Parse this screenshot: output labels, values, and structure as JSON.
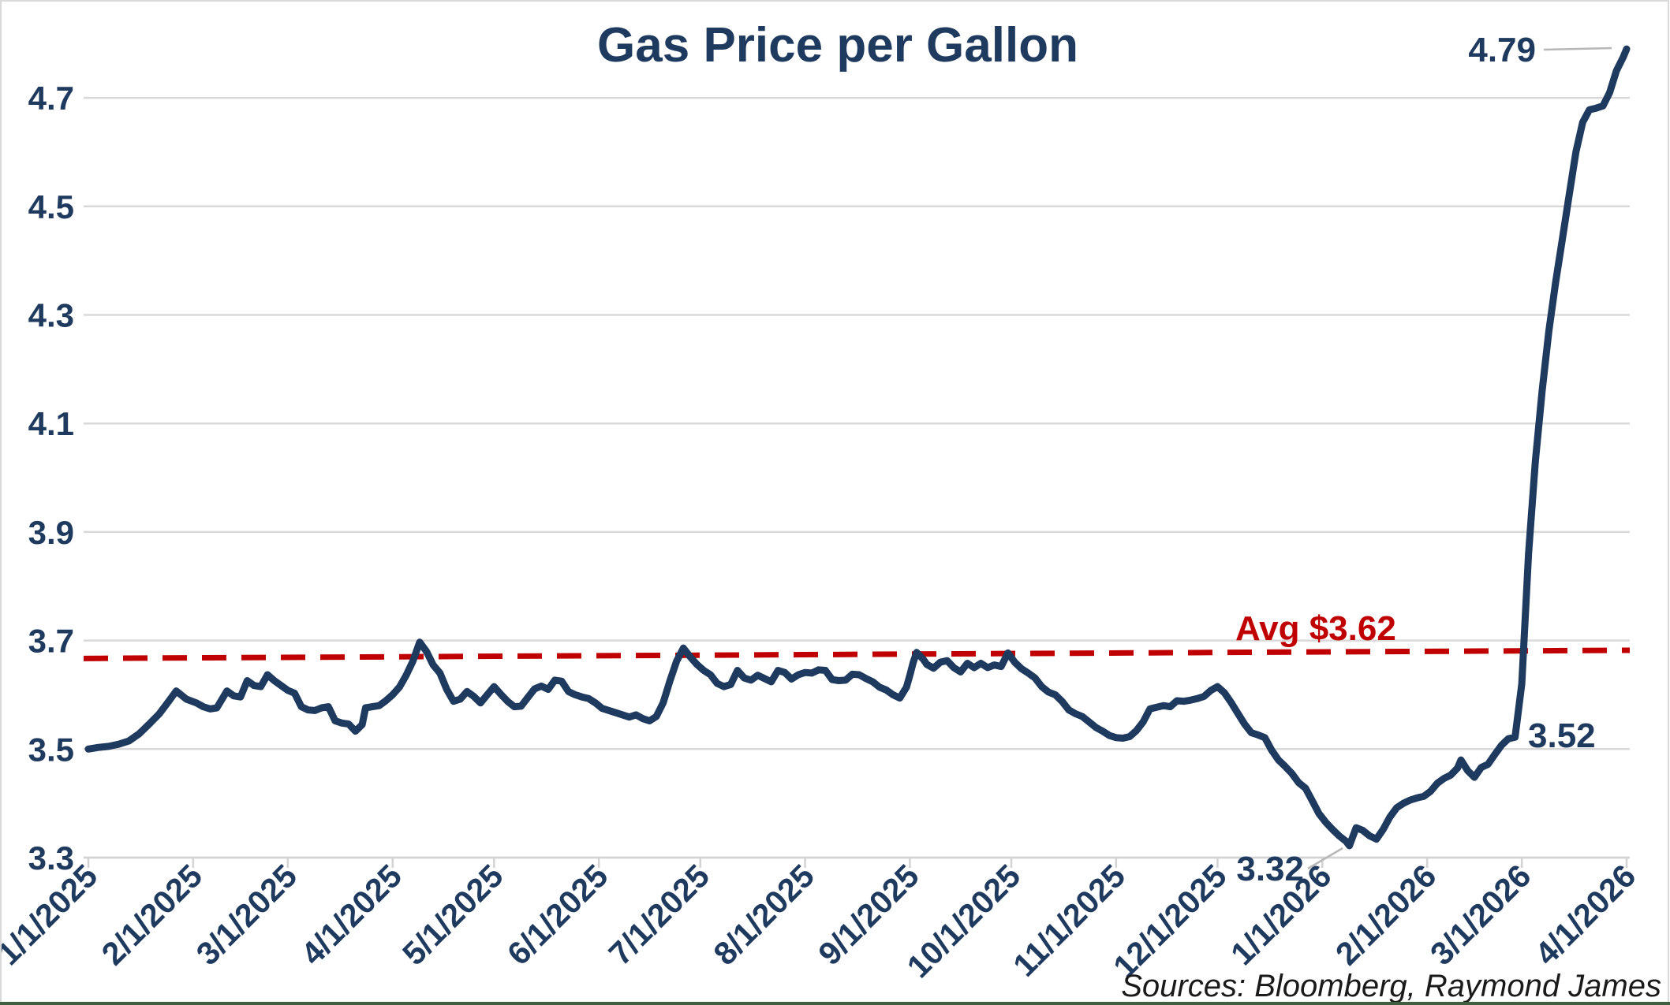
{
  "chart_data": {
    "type": "line",
    "title": "Gas Price per Gallon",
    "source_note": "Sources: Bloomberg, Raymond James",
    "xlabel": "",
    "ylabel": "",
    "x_range": [
      "1/1/2025",
      "4/1/2026"
    ],
    "ylim": [
      3.3,
      4.8
    ],
    "grid": true,
    "legend": "none",
    "y_axis_ticks": [
      "4.7",
      "4.5",
      "4.3",
      "4.1",
      "3.9",
      "3.7",
      "3.5",
      "3.3"
    ],
    "x_axis_ticks": [
      "1/1/2025",
      "2/1/2025",
      "3/1/2025",
      "4/1/2025",
      "5/1/2025",
      "6/1/2025",
      "7/1/2025",
      "8/1/2025",
      "9/1/2025",
      "10/1/2025",
      "11/1/2025",
      "12/1/2025",
      "1/1/2026",
      "2/1/2026",
      "3/1/2026",
      "4/1/2026"
    ],
    "avg_line": {
      "label": "Avg $3.62",
      "stated_value": 3.62,
      "drawn_start_value": 3.667,
      "drawn_end_value": 3.682,
      "style": "dashed"
    },
    "callouts": [
      {
        "id": "max",
        "text": "4.79",
        "value": 4.79,
        "date": "2026-04-01"
      },
      {
        "id": "pre_spike",
        "text": "3.52",
        "value": 3.52,
        "date": "2026-02-27"
      },
      {
        "id": "min",
        "text": "3.32",
        "value": 3.32,
        "date": "2026-01-09"
      }
    ],
    "colors": {
      "line": "#1f3a5f",
      "avg_line": "#c00000",
      "label_text": "#1f3a5f",
      "grid": "#d9d9d9",
      "axis": "#d3d3d3",
      "leader": "#b7b7b7",
      "source_text": "#1a1a1a",
      "bottom_bar": "#3f5f3f",
      "border": "#d9d9d9",
      "background": "#ffffff"
    },
    "series": [
      {
        "name": "Gas price per gallon",
        "points": [
          [
            "2025-01-01",
            3.5
          ],
          [
            "2025-01-04",
            3.503
          ],
          [
            "2025-01-07",
            3.505
          ],
          [
            "2025-01-10",
            3.509
          ],
          [
            "2025-01-13",
            3.515
          ],
          [
            "2025-01-16",
            3.528
          ],
          [
            "2025-01-19",
            3.546
          ],
          [
            "2025-01-22",
            3.565
          ],
          [
            "2025-01-25",
            3.59
          ],
          [
            "2025-01-27",
            3.607
          ],
          [
            "2025-01-30",
            3.592
          ],
          [
            "2025-02-02",
            3.585
          ],
          [
            "2025-02-04",
            3.578
          ],
          [
            "2025-02-06",
            3.574
          ],
          [
            "2025-02-08",
            3.576
          ],
          [
            "2025-02-11",
            3.607
          ],
          [
            "2025-02-13",
            3.598
          ],
          [
            "2025-02-15",
            3.596
          ],
          [
            "2025-02-17",
            3.626
          ],
          [
            "2025-02-19",
            3.617
          ],
          [
            "2025-02-21",
            3.615
          ],
          [
            "2025-02-23",
            3.637
          ],
          [
            "2025-02-25",
            3.626
          ],
          [
            "2025-02-27",
            3.617
          ],
          [
            "2025-03-01",
            3.608
          ],
          [
            "2025-03-03",
            3.603
          ],
          [
            "2025-03-05",
            3.578
          ],
          [
            "2025-03-07",
            3.572
          ],
          [
            "2025-03-09",
            3.571
          ],
          [
            "2025-03-11",
            3.576
          ],
          [
            "2025-03-13",
            3.578
          ],
          [
            "2025-03-15",
            3.552
          ],
          [
            "2025-03-17",
            3.548
          ],
          [
            "2025-03-19",
            3.546
          ],
          [
            "2025-03-21",
            3.533
          ],
          [
            "2025-03-23",
            3.545
          ],
          [
            "2025-03-24",
            3.576
          ],
          [
            "2025-03-26",
            3.578
          ],
          [
            "2025-03-28",
            3.58
          ],
          [
            "2025-03-30",
            3.589
          ],
          [
            "2025-04-01",
            3.6
          ],
          [
            "2025-04-03",
            3.614
          ],
          [
            "2025-04-05",
            3.636
          ],
          [
            "2025-04-07",
            3.662
          ],
          [
            "2025-04-09",
            3.697
          ],
          [
            "2025-04-11",
            3.68
          ],
          [
            "2025-04-13",
            3.655
          ],
          [
            "2025-04-15",
            3.64
          ],
          [
            "2025-04-17",
            3.61
          ],
          [
            "2025-04-19",
            3.588
          ],
          [
            "2025-04-21",
            3.592
          ],
          [
            "2025-04-23",
            3.606
          ],
          [
            "2025-04-25",
            3.597
          ],
          [
            "2025-04-27",
            3.585
          ],
          [
            "2025-04-29",
            3.6
          ],
          [
            "2025-05-01",
            3.615
          ],
          [
            "2025-05-03",
            3.601
          ],
          [
            "2025-05-05",
            3.588
          ],
          [
            "2025-05-07",
            3.578
          ],
          [
            "2025-05-09",
            3.579
          ],
          [
            "2025-05-11",
            3.595
          ],
          [
            "2025-05-13",
            3.611
          ],
          [
            "2025-05-15",
            3.616
          ],
          [
            "2025-05-17",
            3.61
          ],
          [
            "2025-05-19",
            3.627
          ],
          [
            "2025-05-21",
            3.625
          ],
          [
            "2025-05-23",
            3.606
          ],
          [
            "2025-05-25",
            3.6
          ],
          [
            "2025-05-27",
            3.596
          ],
          [
            "2025-05-29",
            3.593
          ],
          [
            "2025-05-31",
            3.585
          ],
          [
            "2025-06-02",
            3.575
          ],
          [
            "2025-06-04",
            3.571
          ],
          [
            "2025-06-06",
            3.567
          ],
          [
            "2025-06-08",
            3.563
          ],
          [
            "2025-06-10",
            3.559
          ],
          [
            "2025-06-12",
            3.563
          ],
          [
            "2025-06-14",
            3.556
          ],
          [
            "2025-06-16",
            3.552
          ],
          [
            "2025-06-18",
            3.56
          ],
          [
            "2025-06-20",
            3.585
          ],
          [
            "2025-06-22",
            3.625
          ],
          [
            "2025-06-24",
            3.662
          ],
          [
            "2025-06-26",
            3.686
          ],
          [
            "2025-06-28",
            3.67
          ],
          [
            "2025-06-30",
            3.656
          ],
          [
            "2025-07-02",
            3.645
          ],
          [
            "2025-07-04",
            3.637
          ],
          [
            "2025-07-06",
            3.621
          ],
          [
            "2025-07-08",
            3.615
          ],
          [
            "2025-07-10",
            3.619
          ],
          [
            "2025-07-12",
            3.645
          ],
          [
            "2025-07-14",
            3.631
          ],
          [
            "2025-07-16",
            3.627
          ],
          [
            "2025-07-18",
            3.636
          ],
          [
            "2025-07-20",
            3.63
          ],
          [
            "2025-07-22",
            3.624
          ],
          [
            "2025-07-24",
            3.645
          ],
          [
            "2025-07-26",
            3.641
          ],
          [
            "2025-07-28",
            3.629
          ],
          [
            "2025-07-30",
            3.637
          ],
          [
            "2025-08-01",
            3.641
          ],
          [
            "2025-08-03",
            3.64
          ],
          [
            "2025-08-05",
            3.646
          ],
          [
            "2025-08-07",
            3.645
          ],
          [
            "2025-08-09",
            3.628
          ],
          [
            "2025-08-11",
            3.626
          ],
          [
            "2025-08-13",
            3.627
          ],
          [
            "2025-08-15",
            3.638
          ],
          [
            "2025-08-17",
            3.637
          ],
          [
            "2025-08-19",
            3.63
          ],
          [
            "2025-08-21",
            3.624
          ],
          [
            "2025-08-23",
            3.614
          ],
          [
            "2025-08-25",
            3.609
          ],
          [
            "2025-08-27",
            3.6
          ],
          [
            "2025-08-29",
            3.594
          ],
          [
            "2025-08-31",
            3.614
          ],
          [
            "2025-09-01",
            3.636
          ],
          [
            "2025-09-02",
            3.66
          ],
          [
            "2025-09-03",
            3.678
          ],
          [
            "2025-09-05",
            3.665
          ],
          [
            "2025-09-06",
            3.656
          ],
          [
            "2025-09-08",
            3.649
          ],
          [
            "2025-09-10",
            3.66
          ],
          [
            "2025-09-12",
            3.663
          ],
          [
            "2025-09-14",
            3.65
          ],
          [
            "2025-09-16",
            3.642
          ],
          [
            "2025-09-18",
            3.658
          ],
          [
            "2025-09-20",
            3.65
          ],
          [
            "2025-09-22",
            3.658
          ],
          [
            "2025-09-24",
            3.65
          ],
          [
            "2025-09-26",
            3.655
          ],
          [
            "2025-09-28",
            3.652
          ],
          [
            "2025-09-30",
            3.677
          ],
          [
            "2025-10-02",
            3.66
          ],
          [
            "2025-10-04",
            3.648
          ],
          [
            "2025-10-06",
            3.64
          ],
          [
            "2025-10-08",
            3.631
          ],
          [
            "2025-10-10",
            3.615
          ],
          [
            "2025-10-12",
            3.605
          ],
          [
            "2025-10-14",
            3.6
          ],
          [
            "2025-10-16",
            3.588
          ],
          [
            "2025-10-18",
            3.572
          ],
          [
            "2025-10-20",
            3.565
          ],
          [
            "2025-10-22",
            3.56
          ],
          [
            "2025-10-24",
            3.55
          ],
          [
            "2025-10-26",
            3.54
          ],
          [
            "2025-10-28",
            3.533
          ],
          [
            "2025-10-30",
            3.525
          ],
          [
            "2025-11-01",
            3.521
          ],
          [
            "2025-11-03",
            3.52
          ],
          [
            "2025-11-05",
            3.523
          ],
          [
            "2025-11-07",
            3.534
          ],
          [
            "2025-11-09",
            3.55
          ],
          [
            "2025-11-11",
            3.574
          ],
          [
            "2025-11-13",
            3.577
          ],
          [
            "2025-11-15",
            3.58
          ],
          [
            "2025-11-17",
            3.578
          ],
          [
            "2025-11-19",
            3.589
          ],
          [
            "2025-11-21",
            3.588
          ],
          [
            "2025-11-23",
            3.59
          ],
          [
            "2025-11-25",
            3.593
          ],
          [
            "2025-11-27",
            3.597
          ],
          [
            "2025-11-29",
            3.608
          ],
          [
            "2025-12-01",
            3.615
          ],
          [
            "2025-12-03",
            3.604
          ],
          [
            "2025-12-05",
            3.586
          ],
          [
            "2025-12-07",
            3.566
          ],
          [
            "2025-12-09",
            3.546
          ],
          [
            "2025-12-11",
            3.53
          ],
          [
            "2025-12-13",
            3.526
          ],
          [
            "2025-12-15",
            3.521
          ],
          [
            "2025-12-17",
            3.498
          ],
          [
            "2025-12-19",
            3.48
          ],
          [
            "2025-12-21",
            3.468
          ],
          [
            "2025-12-23",
            3.455
          ],
          [
            "2025-12-25",
            3.438
          ],
          [
            "2025-12-27",
            3.428
          ],
          [
            "2025-12-29",
            3.405
          ],
          [
            "2025-12-31",
            3.381
          ],
          [
            "2026-01-02",
            3.365
          ],
          [
            "2026-01-04",
            3.352
          ],
          [
            "2026-01-06",
            3.34
          ],
          [
            "2026-01-08",
            3.33
          ],
          [
            "2026-01-09",
            3.322
          ],
          [
            "2026-01-11",
            3.355
          ],
          [
            "2026-01-13",
            3.35
          ],
          [
            "2026-01-15",
            3.34
          ],
          [
            "2026-01-17",
            3.334
          ],
          [
            "2026-01-19",
            3.352
          ],
          [
            "2026-01-21",
            3.375
          ],
          [
            "2026-01-23",
            3.392
          ],
          [
            "2026-01-25",
            3.4
          ],
          [
            "2026-01-27",
            3.406
          ],
          [
            "2026-01-29",
            3.41
          ],
          [
            "2026-01-31",
            3.413
          ],
          [
            "2026-02-02",
            3.422
          ],
          [
            "2026-02-04",
            3.437
          ],
          [
            "2026-02-06",
            3.446
          ],
          [
            "2026-02-08",
            3.452
          ],
          [
            "2026-02-10",
            3.465
          ],
          [
            "2026-02-11",
            3.48
          ],
          [
            "2026-02-13",
            3.46
          ],
          [
            "2026-02-15",
            3.448
          ],
          [
            "2026-02-17",
            3.466
          ],
          [
            "2026-02-19",
            3.472
          ],
          [
            "2026-02-21",
            3.49
          ],
          [
            "2026-02-23",
            3.507
          ],
          [
            "2026-02-25",
            3.519
          ],
          [
            "2026-02-27",
            3.522
          ],
          [
            "2026-03-01",
            3.62
          ],
          [
            "2026-03-03",
            3.86
          ],
          [
            "2026-03-05",
            4.03
          ],
          [
            "2026-03-07",
            4.16
          ],
          [
            "2026-03-09",
            4.27
          ],
          [
            "2026-03-11",
            4.36
          ],
          [
            "2026-03-13",
            4.44
          ],
          [
            "2026-03-15",
            4.52
          ],
          [
            "2026-03-17",
            4.6
          ],
          [
            "2026-03-19",
            4.655
          ],
          [
            "2026-03-21",
            4.678
          ],
          [
            "2026-03-23",
            4.681
          ],
          [
            "2026-03-25",
            4.685
          ],
          [
            "2026-03-27",
            4.71
          ],
          [
            "2026-03-29",
            4.75
          ],
          [
            "2026-03-31",
            4.775
          ],
          [
            "2026-04-01",
            4.79
          ]
        ]
      }
    ]
  }
}
